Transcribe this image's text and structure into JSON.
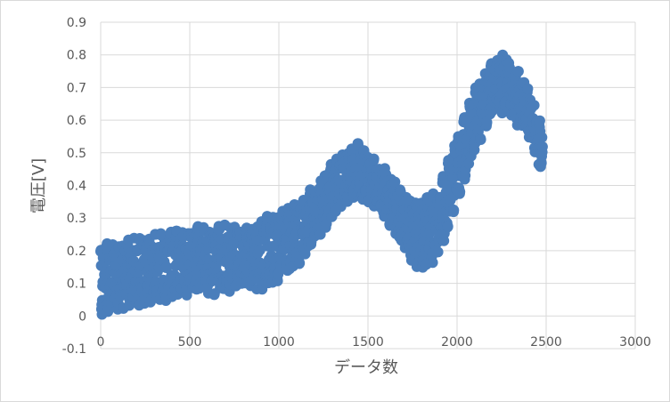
{
  "chart_data": {
    "type": "scatter",
    "title": "",
    "xlabel": "データ数",
    "ylabel": "電圧[V]",
    "xlim": [
      0,
      3000
    ],
    "ylim": [
      -0.1,
      0.9
    ],
    "x_ticks": [
      0,
      500,
      1000,
      1500,
      2000,
      2500,
      3000
    ],
    "y_ticks": [
      -0.1,
      0,
      0.1,
      0.2,
      0.3,
      0.4,
      0.5,
      0.6,
      0.7,
      0.8,
      0.9
    ],
    "x_tick_labels": [
      "0",
      "500",
      "1000",
      "1500",
      "2000",
      "2500",
      "3000"
    ],
    "y_tick_labels": [
      "-0.1",
      "0",
      "0.1",
      "0.2",
      "0.3",
      "0.4",
      "0.5",
      "0.6",
      "0.7",
      "0.8",
      "0.9"
    ],
    "grid": true,
    "legend": "none",
    "series": [
      {
        "color": "#4a7ebb",
        "envelope": {
          "x": [
            0,
            100,
            200,
            300,
            400,
            500,
            600,
            700,
            800,
            900,
            1000,
            1100,
            1200,
            1300,
            1400,
            1450,
            1500,
            1600,
            1700,
            1800,
            1900,
            2000,
            2100,
            2200,
            2250,
            2300,
            2400,
            2480
          ],
          "y_min": [
            0.0,
            0.02,
            0.03,
            0.04,
            0.05,
            0.06,
            0.06,
            0.07,
            0.08,
            0.08,
            0.1,
            0.15,
            0.22,
            0.3,
            0.35,
            0.36,
            0.35,
            0.3,
            0.2,
            0.13,
            0.18,
            0.35,
            0.5,
            0.62,
            0.62,
            0.6,
            0.55,
            0.42
          ],
          "y_max": [
            0.22,
            0.23,
            0.24,
            0.25,
            0.26,
            0.27,
            0.28,
            0.28,
            0.28,
            0.3,
            0.32,
            0.35,
            0.4,
            0.47,
            0.52,
            0.53,
            0.5,
            0.45,
            0.38,
            0.35,
            0.4,
            0.55,
            0.7,
            0.78,
            0.81,
            0.8,
            0.7,
            0.58
          ]
        }
      }
    ]
  }
}
